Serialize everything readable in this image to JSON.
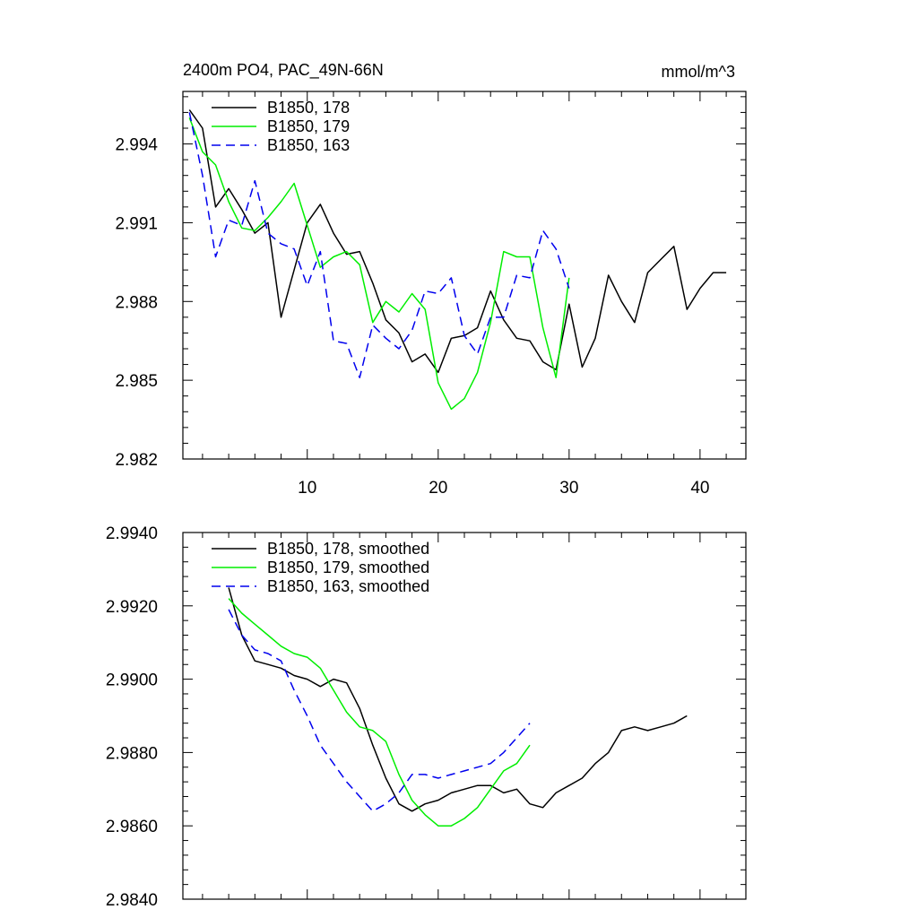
{
  "chart_data": [
    {
      "type": "line",
      "title": "2400m PO4, PAC_49N-66N",
      "units": "mmol/m^3",
      "xlim": [
        0.5,
        43.5
      ],
      "ylim": [
        2.982,
        2.996
      ],
      "xticks": [
        10,
        20,
        30,
        40
      ],
      "yticks": [
        2.982,
        2.985,
        2.988,
        2.991,
        2.994
      ],
      "ytick_labels": [
        "2.982",
        "2.985",
        "2.988",
        "2.991",
        "2.994"
      ],
      "series": [
        {
          "name": "B1850, 178",
          "color": "#000000",
          "dash": "",
          "x": [
            1,
            2,
            3,
            4,
            5,
            6,
            7,
            8,
            9,
            10,
            11,
            12,
            13,
            14,
            15,
            16,
            17,
            18,
            19,
            20,
            21,
            22,
            23,
            24,
            25,
            26,
            27,
            28,
            29,
            30,
            31,
            32,
            33,
            34,
            35,
            36,
            37,
            38,
            39,
            40,
            41,
            42
          ],
          "values": [
            2.9953,
            2.9946,
            2.9916,
            2.9923,
            2.9915,
            2.9906,
            2.991,
            2.9874,
            2.9892,
            2.991,
            2.9917,
            2.9906,
            2.9898,
            2.9899,
            2.9887,
            2.9873,
            2.9868,
            2.9857,
            2.986,
            2.9853,
            2.9866,
            2.9867,
            2.987,
            2.9884,
            2.9873,
            2.9866,
            2.9865,
            2.9857,
            2.9854,
            2.9879,
            2.9855,
            2.9866,
            2.989,
            2.988,
            2.9872,
            2.9891,
            2.9896,
            2.9901,
            2.9877,
            2.9885,
            2.9891,
            2.9891
          ]
        },
        {
          "name": "B1850, 179",
          "color": "#00ee00",
          "dash": "",
          "x": [
            1,
            2,
            3,
            4,
            5,
            6,
            7,
            8,
            9,
            10,
            11,
            12,
            13,
            14,
            15,
            16,
            17,
            18,
            19,
            20,
            21,
            22,
            23,
            24,
            25,
            26,
            27,
            28,
            29,
            30
          ],
          "values": [
            2.995,
            2.9937,
            2.9932,
            2.9918,
            2.9908,
            2.9907,
            2.9912,
            2.9918,
            2.9925,
            2.9909,
            2.9893,
            2.9897,
            2.9899,
            2.9894,
            2.9872,
            2.988,
            2.9876,
            2.9883,
            2.9877,
            2.9849,
            2.9839,
            2.9843,
            2.9853,
            2.9872,
            2.9899,
            2.9897,
            2.9897,
            2.987,
            2.9851,
            2.9889
          ]
        },
        {
          "name": "B1850, 163",
          "color": "#0000ee",
          "dash": "10,6",
          "x": [
            1,
            2,
            3,
            4,
            5,
            6,
            7,
            8,
            9,
            10,
            11,
            12,
            13,
            14,
            15,
            16,
            17,
            18,
            19,
            20,
            21,
            22,
            23,
            24,
            25,
            26,
            27,
            28,
            29,
            30
          ],
          "values": [
            2.9952,
            2.9928,
            2.9897,
            2.9911,
            2.9909,
            2.9926,
            2.9906,
            2.9902,
            2.99,
            2.9886,
            2.9899,
            2.9865,
            2.9864,
            2.9851,
            2.9871,
            2.9866,
            2.9862,
            2.9869,
            2.9884,
            2.9883,
            2.9889,
            2.9867,
            2.986,
            2.9874,
            2.9874,
            2.989,
            2.9889,
            2.9907,
            2.99,
            2.9885
          ]
        }
      ]
    },
    {
      "type": "line",
      "title": "",
      "xlim": [
        0.5,
        43.5
      ],
      "ylim": [
        2.984,
        2.994
      ],
      "xticks": [
        10,
        20,
        30,
        40
      ],
      "yticks": [
        2.984,
        2.986,
        2.988,
        2.99,
        2.992,
        2.994
      ],
      "ytick_labels": [
        "2.9840",
        "2.9860",
        "2.9880",
        "2.9900",
        "2.9920",
        "2.9940"
      ],
      "series": [
        {
          "name": "B1850, 178, smoothed",
          "color": "#000000",
          "dash": "",
          "x": [
            4,
            5,
            6,
            7,
            8,
            9,
            10,
            11,
            12,
            13,
            14,
            15,
            16,
            17,
            18,
            19,
            20,
            21,
            22,
            23,
            24,
            25,
            26,
            27,
            28,
            29,
            30,
            31,
            32,
            33,
            34,
            35,
            36,
            37,
            38,
            39
          ],
          "values": [
            2.9925,
            2.9912,
            2.9905,
            2.9904,
            2.9903,
            2.9901,
            2.99,
            2.9898,
            2.99,
            2.9899,
            2.9892,
            2.9882,
            2.9873,
            2.9866,
            2.9864,
            2.9866,
            2.9867,
            2.9869,
            2.987,
            2.9871,
            2.9871,
            2.9869,
            2.987,
            2.9866,
            2.9865,
            2.9869,
            2.9871,
            2.9873,
            2.9877,
            2.988,
            2.9886,
            2.9887,
            2.9886,
            2.9887,
            2.9888,
            2.989
          ]
        },
        {
          "name": "B1850, 179, smoothed",
          "color": "#00ee00",
          "dash": "",
          "x": [
            4,
            5,
            6,
            7,
            8,
            9,
            10,
            11,
            12,
            13,
            14,
            15,
            16,
            17,
            18,
            19,
            20,
            21,
            22,
            23,
            24,
            25,
            26,
            27
          ],
          "values": [
            2.9922,
            2.9918,
            2.9915,
            2.9912,
            2.9909,
            2.9907,
            2.9906,
            2.9903,
            2.9897,
            2.9891,
            2.9887,
            2.9886,
            2.9883,
            2.9874,
            2.9867,
            2.9863,
            2.986,
            2.986,
            2.9862,
            2.9865,
            2.987,
            2.9875,
            2.9877,
            2.9882
          ]
        },
        {
          "name": "B1850, 163, smoothed",
          "color": "#0000ee",
          "dash": "10,6",
          "x": [
            4,
            5,
            6,
            7,
            8,
            9,
            10,
            11,
            12,
            13,
            14,
            15,
            16,
            17,
            18,
            19,
            20,
            21,
            22,
            23,
            24,
            25,
            26,
            27
          ],
          "values": [
            2.9919,
            2.9912,
            2.9908,
            2.9907,
            2.9905,
            2.9897,
            2.989,
            2.9882,
            2.9877,
            2.9872,
            2.9868,
            2.9864,
            2.9866,
            2.9869,
            2.9874,
            2.9874,
            2.9873,
            2.9874,
            2.9875,
            2.9876,
            2.9877,
            2.988,
            2.9884,
            2.9888
          ]
        }
      ]
    }
  ]
}
